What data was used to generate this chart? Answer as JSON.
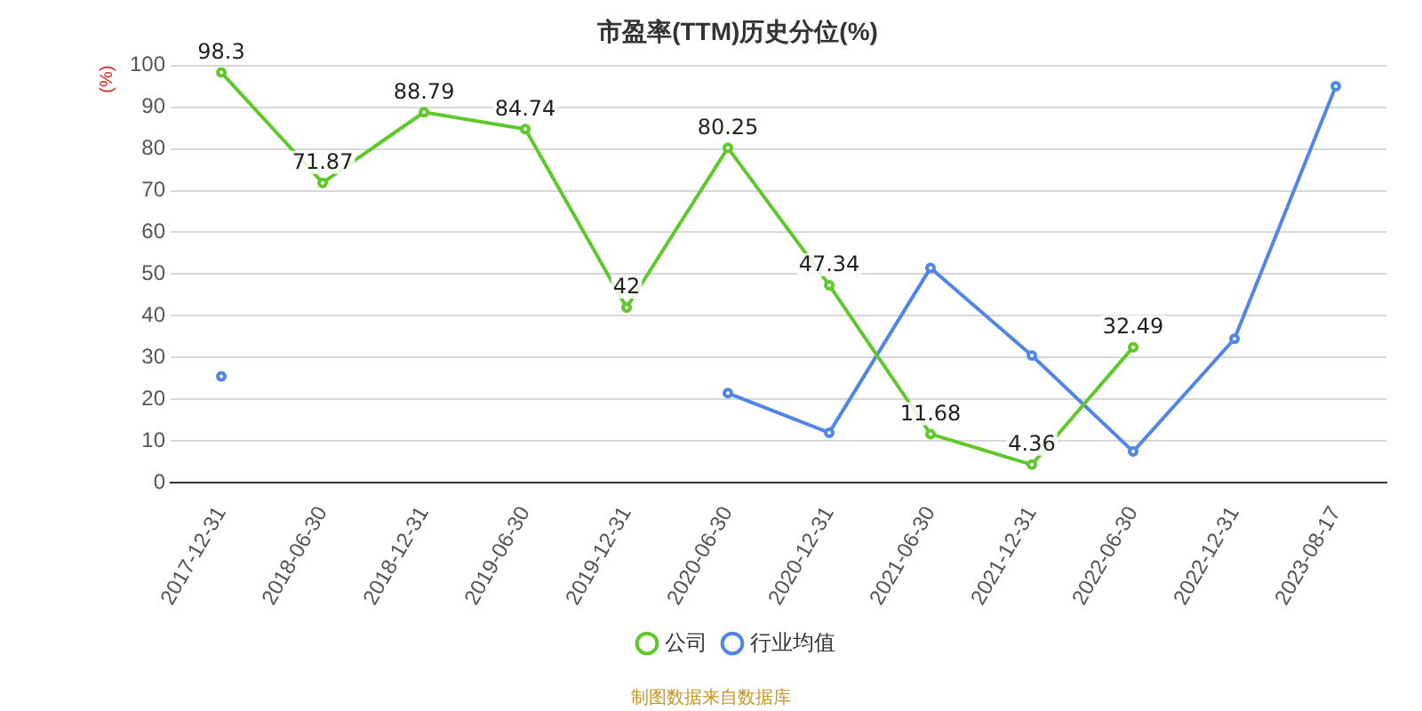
{
  "chart_data": {
    "type": "line",
    "title": "市盈率(TTM)历史分位(%)",
    "ylabel": "(%)",
    "categories": [
      "2017-12-31",
      "2018-06-30",
      "2018-12-31",
      "2019-06-30",
      "2019-12-31",
      "2020-06-30",
      "2020-12-31",
      "2021-06-30",
      "2021-12-31",
      "2022-06-30",
      "2022-12-31",
      "2023-08-17"
    ],
    "series": [
      {
        "name": "公司",
        "color": "#5ec92a",
        "values": [
          98.3,
          71.87,
          88.79,
          84.74,
          42,
          80.25,
          47.34,
          11.68,
          4.36,
          32.49,
          null,
          null
        ],
        "value_labels": [
          "98.3",
          "71.87",
          "88.79",
          "84.74",
          "42",
          "80.25",
          "47.34",
          "11.68",
          "4.36",
          "32.49",
          null,
          null
        ]
      },
      {
        "name": "行业均值",
        "color": "#5087e5",
        "values": [
          25.5,
          null,
          null,
          null,
          null,
          21.5,
          12,
          51.5,
          30.5,
          7.5,
          34.5,
          95
        ]
      }
    ],
    "ylim": [
      0,
      100
    ],
    "yticks": [
      0,
      10,
      20,
      30,
      40,
      50,
      60,
      70,
      80,
      90,
      100
    ],
    "grid": "y",
    "legend": "bottom",
    "marker": "circle",
    "line_style": "solid",
    "annotations": [
      "制图数据来自数据库"
    ]
  }
}
